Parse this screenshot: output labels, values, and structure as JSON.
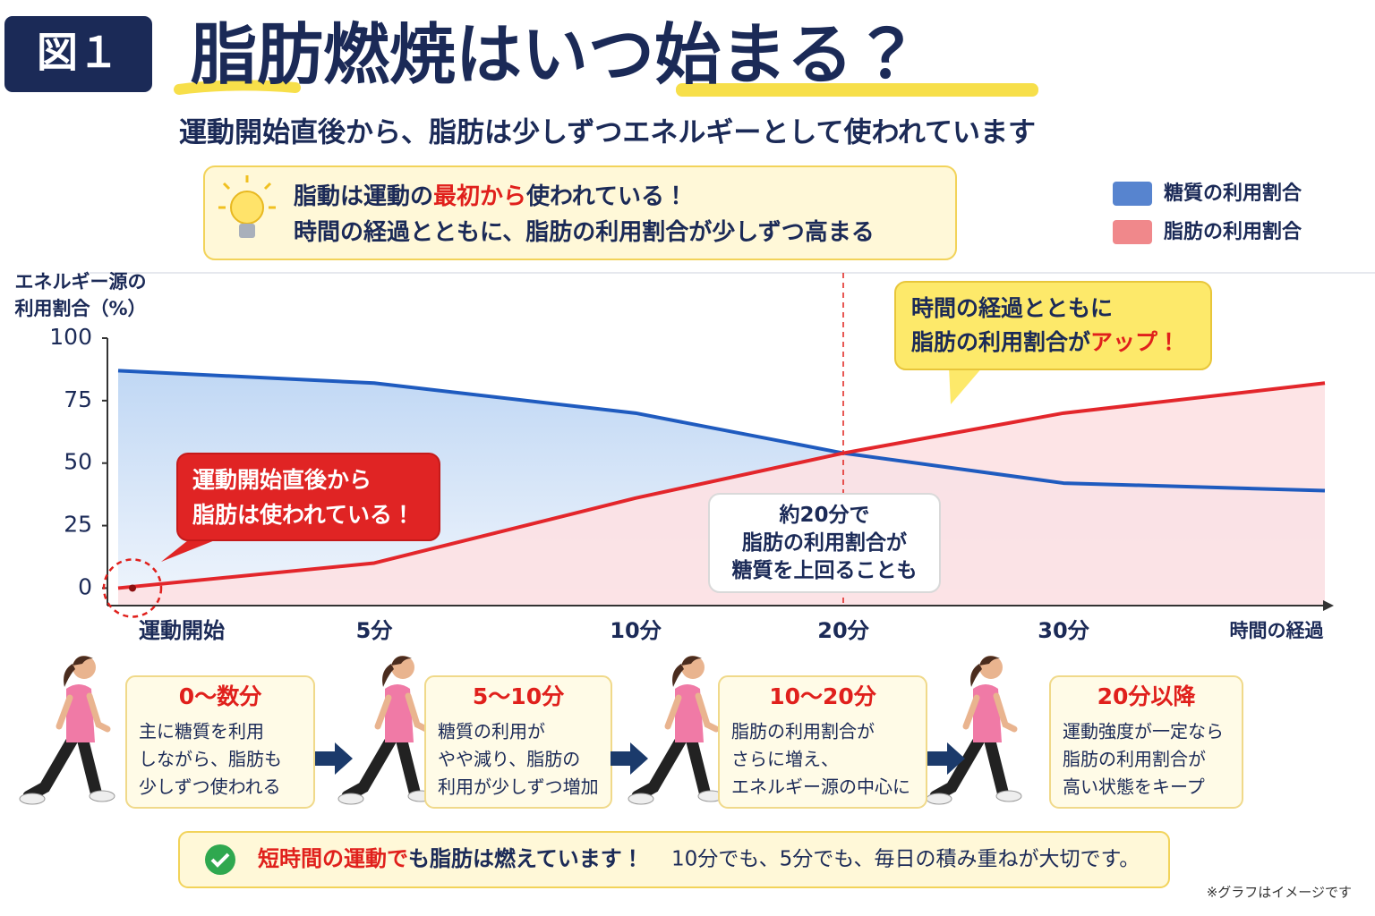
{
  "header": {
    "badge": "図１",
    "title": "脂肪燃焼はいつ始まる？",
    "subtitle": "運動開始直後から、脂肪は少しずつエネルギーとして使われています"
  },
  "info_box": {
    "lines": [
      [
        {
          "text": "脂動は運動の"
        },
        {
          "text": "最初から",
          "color": "#e0201c"
        },
        {
          "text": "使われている！"
        }
      ],
      [
        {
          "text": "時間の経過とともに、脂肪の利用割合が少しずつ高まる"
        }
      ]
    ]
  },
  "chart_data": {
    "type": "line",
    "y_label": [
      "エネルギー源の",
      "利用割合（%）"
    ],
    "x_label": "時間の経過",
    "categories": [
      "運動開始",
      "5分",
      "10分",
      "20分",
      "30分",
      null
    ],
    "series": [
      {
        "name": "糖質の利用割合",
        "color": "#1f5bbf",
        "values": [
          87,
          82,
          70,
          54,
          42,
          39
        ]
      },
      {
        "name": "脂肪の利用割合",
        "color": "#e3262b",
        "values": [
          0,
          10,
          36,
          54,
          70,
          82
        ]
      }
    ],
    "ylim": [
      -7,
      100
    ],
    "yticks": [
      0,
      25,
      50,
      75,
      100
    ],
    "legend": "top-right",
    "annotations": [
      {
        "lines": [
          [
            {
              "text": "運動開始直後から"
            }
          ],
          [
            {
              "text": "脂肪は使われている！"
            }
          ]
        ]
      },
      {
        "lines": [
          [
            {
              "text": "約20分で"
            }
          ],
          [
            {
              "text": "脂肪の利用割合が"
            }
          ],
          [
            {
              "text": "糖質を上回ることも"
            }
          ]
        ]
      },
      {
        "lines": [
          [
            {
              "text": "時間の経過とともに"
            }
          ],
          [
            {
              "text": "脂肪の利用割合が"
            },
            {
              "text": "アップ！",
              "color": "#e0201c"
            }
          ]
        ]
      }
    ]
  },
  "stages": [
    {
      "title": "0～数分",
      "lines": [
        "主に糖質を利用",
        "しながら、脂肪も",
        "少しずつ使われる"
      ]
    },
    {
      "title": "5～10分",
      "lines": [
        "糖質の利用が",
        "やや減り、脂肪の",
        "利用が少しずつ増加"
      ]
    },
    {
      "title": "10～20分",
      "lines": [
        "脂肪の利用割合が",
        "さらに増え、",
        "エネルギー源の中心に"
      ]
    },
    {
      "title": "20分以降",
      "lines": [
        "運動強度が一定なら",
        "脂肪の利用割合が",
        "高い状態をキープ"
      ]
    }
  ],
  "footer": {
    "lines": [
      [
        {
          "text": "短時間の運動で",
          "color": "#e0201c"
        },
        {
          "text": "も脂肪は燃えています！"
        }
      ]
    ],
    "message": "10分でも、5分でも、毎日の積み重ねが大切です。"
  },
  "note": "※グラフはイメージです"
}
